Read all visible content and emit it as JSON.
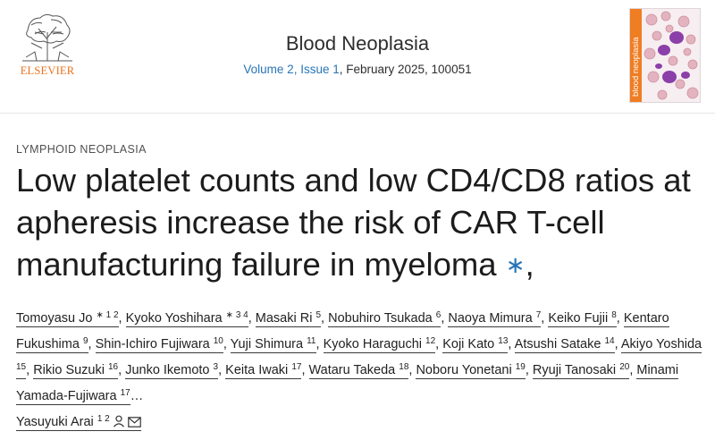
{
  "publisher": {
    "name": "ELSEVIER"
  },
  "journal": {
    "title": "Blood Neoplasia",
    "volume_issue": "Volume 2, Issue 1",
    "date_id": ", February 2025, 100051",
    "cover_title": "blood neoplasia"
  },
  "article": {
    "category": "LYMPHOID NEOPLASIA",
    "title": "Low platelet counts and low CD4/CD8 ratios at apheresis increase the risk of CAR T-cell manufacturing failure in myeloma",
    "title_marker": "∗",
    "title_trailing": ","
  },
  "authors": [
    {
      "name": "Tomoyasu Jo",
      "aff": "∗ 1 2"
    },
    {
      "name": "Kyoko Yoshihara",
      "aff": "∗ 3 4"
    },
    {
      "name": "Masaki Ri",
      "aff": "5"
    },
    {
      "name": "Nobuhiro Tsukada",
      "aff": "6"
    },
    {
      "name": "Naoya Mimura",
      "aff": "7"
    },
    {
      "name": "Keiko Fujii",
      "aff": "8"
    },
    {
      "name": "Kentaro Fukushima",
      "aff": "9"
    },
    {
      "name": "Shin-Ichiro Fujiwara",
      "aff": "10"
    },
    {
      "name": "Yuji Shimura",
      "aff": "11"
    },
    {
      "name": "Kyoko Haraguchi",
      "aff": "12"
    },
    {
      "name": "Koji Kato",
      "aff": "13"
    },
    {
      "name": "Atsushi Satake",
      "aff": "14"
    },
    {
      "name": "Akiyo Yoshida",
      "aff": "15"
    },
    {
      "name": "Rikio Suzuki",
      "aff": "16"
    },
    {
      "name": "Junko Ikemoto",
      "aff": "3"
    },
    {
      "name": "Keita Iwaki",
      "aff": "17"
    },
    {
      "name": "Wataru Takeda",
      "aff": "18"
    },
    {
      "name": "Noboru Yonetani",
      "aff": "19"
    },
    {
      "name": "Ryuji Tanosaki",
      "aff": "20"
    },
    {
      "name": "Minami Yamada-Fujiwara",
      "aff": "17"
    },
    {
      "name": "Yasuyuki Arai",
      "aff": "1 2"
    }
  ],
  "ellipsis": "…",
  "icons": {
    "person": "person-icon",
    "email": "email-icon"
  },
  "colors": {
    "link": "#2775b6",
    "brand": "#e9711c",
    "cover_spine": "#ef7d22"
  }
}
